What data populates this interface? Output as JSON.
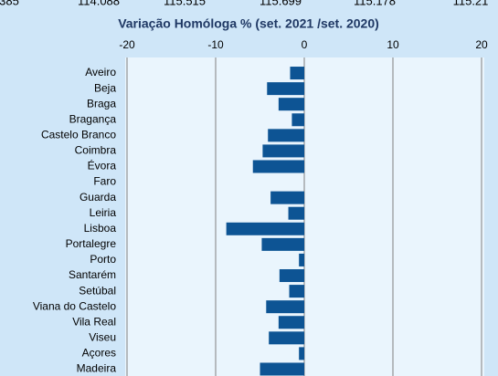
{
  "top_row": [
    "385",
    "114.088",
    "115.515",
    "115.699",
    "115.178",
    "115.21"
  ],
  "chart_data": {
    "type": "bar",
    "orientation": "horizontal",
    "title": "Variação Homóloga % (set. 2021 /set. 2020)",
    "categories": [
      "Aveiro",
      "Beja",
      "Braga",
      "Bragança",
      "Castelo Branco",
      "Coimbra",
      "Évora",
      "Faro",
      "Guarda",
      "Leiria",
      "Lisboa",
      "Portalegre",
      "Porto",
      "Santarém",
      "Setúbal",
      "Viana do Castelo",
      "Vila Real",
      "Viseu",
      "Açores",
      "Madeira"
    ],
    "values": [
      -1.6,
      -4.2,
      -2.9,
      -1.4,
      -4.1,
      -4.7,
      -5.8,
      0,
      -3.8,
      -1.8,
      -8.8,
      -4.8,
      -0.6,
      -2.8,
      -1.7,
      -4.3,
      -2.9,
      -4.0,
      -0.6,
      -5.0
    ],
    "color": "#0d5494",
    "xlim": [
      -20,
      20
    ],
    "xticks": [
      -20,
      -10,
      0,
      10,
      20
    ],
    "grid": true
  }
}
